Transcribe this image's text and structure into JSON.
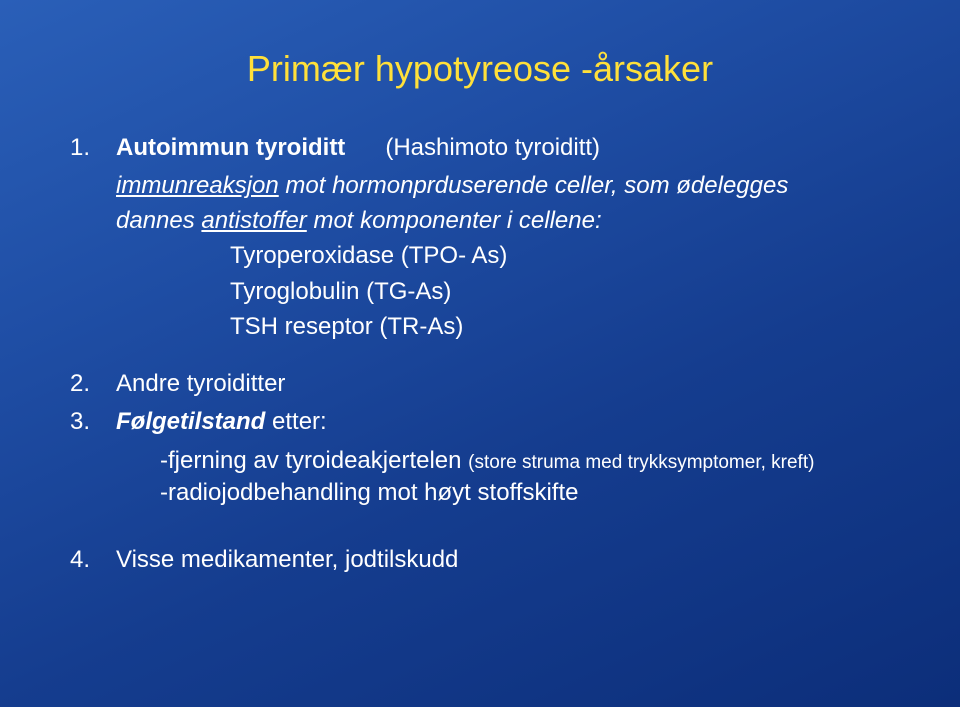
{
  "title": "Primær hypotyreose -årsaker",
  "items": [
    {
      "num": "1.",
      "lead_bold": "Autoimmun tyroiditt",
      "lead_rest": "(Hashimoto tyroiditt)",
      "sub1_underlined": "immunreaksjon",
      "sub1_rest": " mot hormonprduserende celler, som ødelegges",
      "sub2_pre": "dannes ",
      "sub2_underlined": "antistoffer",
      "sub2_rest": " mot komponenter i cellene:",
      "cell_list": [
        "Tyroperoxidase (TPO- As)",
        "Tyroglobulin (TG-As)",
        "TSH reseptor (TR-As)"
      ]
    },
    {
      "num": "2.",
      "text": "Andre tyroiditter"
    },
    {
      "num": "3.",
      "lead_bold_italic": "Følgetilstand",
      "lead_rest": " etter:",
      "lines": [
        {
          "pre": "-fjerning av tyroideakjertelen ",
          "small": "(store struma med trykksymptomer, kreft)"
        },
        {
          "pre": "-radiojodbehandling mot høyt stoffskifte"
        }
      ]
    },
    {
      "num": "4.",
      "text": "Visse medikamenter, jodtilskudd"
    }
  ],
  "colors": {
    "title": "#ffe03a",
    "body_text": "#ffffff",
    "bg_top": "#2a5fb8",
    "bg_bottom": "#0c2e7a"
  }
}
